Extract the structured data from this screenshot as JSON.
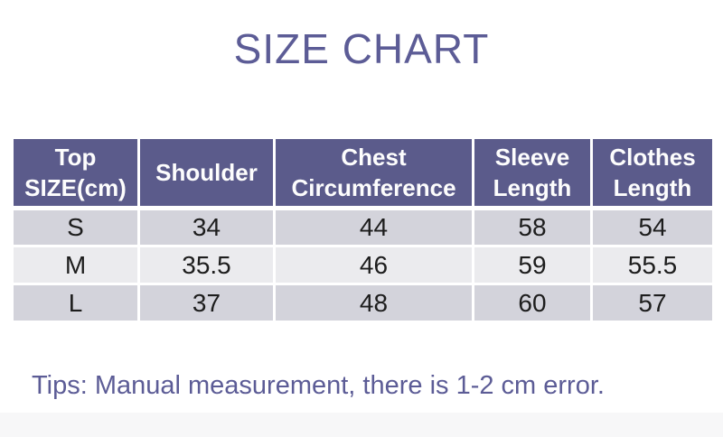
{
  "page": {
    "title": "SIZE CHART",
    "tips": "Tips: Manual measurement, there is 1-2 cm error."
  },
  "table": {
    "headers": [
      "Top SIZE(cm)",
      "Shoulder",
      "Chest Circumference",
      "Sleeve Length",
      "Clothes Length"
    ],
    "rows": [
      {
        "size": "S",
        "values": [
          "34",
          "44",
          "58",
          "54"
        ]
      },
      {
        "size": "M",
        "values": [
          "35.5",
          "46",
          "59",
          "55.5"
        ]
      },
      {
        "size": "L",
        "values": [
          "37",
          "48",
          "60",
          "57"
        ]
      }
    ]
  },
  "chart_data": {
    "type": "table",
    "title": "SIZE CHART",
    "unit": "cm",
    "columns": [
      "Top SIZE(cm)",
      "Shoulder",
      "Chest Circumference",
      "Sleeve Length",
      "Clothes Length"
    ],
    "rows": [
      [
        "S",
        34,
        44,
        58,
        54
      ],
      [
        "M",
        35.5,
        46,
        59,
        55.5
      ],
      [
        "L",
        37,
        48,
        60,
        57
      ]
    ],
    "note": "Tips: Manual measurement, there is 1-2 cm error."
  },
  "colors": {
    "accent_text": "#5c5c96",
    "header_bg": "#5b5b8b",
    "header_text": "#fdfdfd",
    "row_alt_bg": "#d3d3db",
    "row_light_bg": "#ebebee",
    "cell_text": "#1d1d1d",
    "footer_band_bg": "#f7f7f8"
  }
}
